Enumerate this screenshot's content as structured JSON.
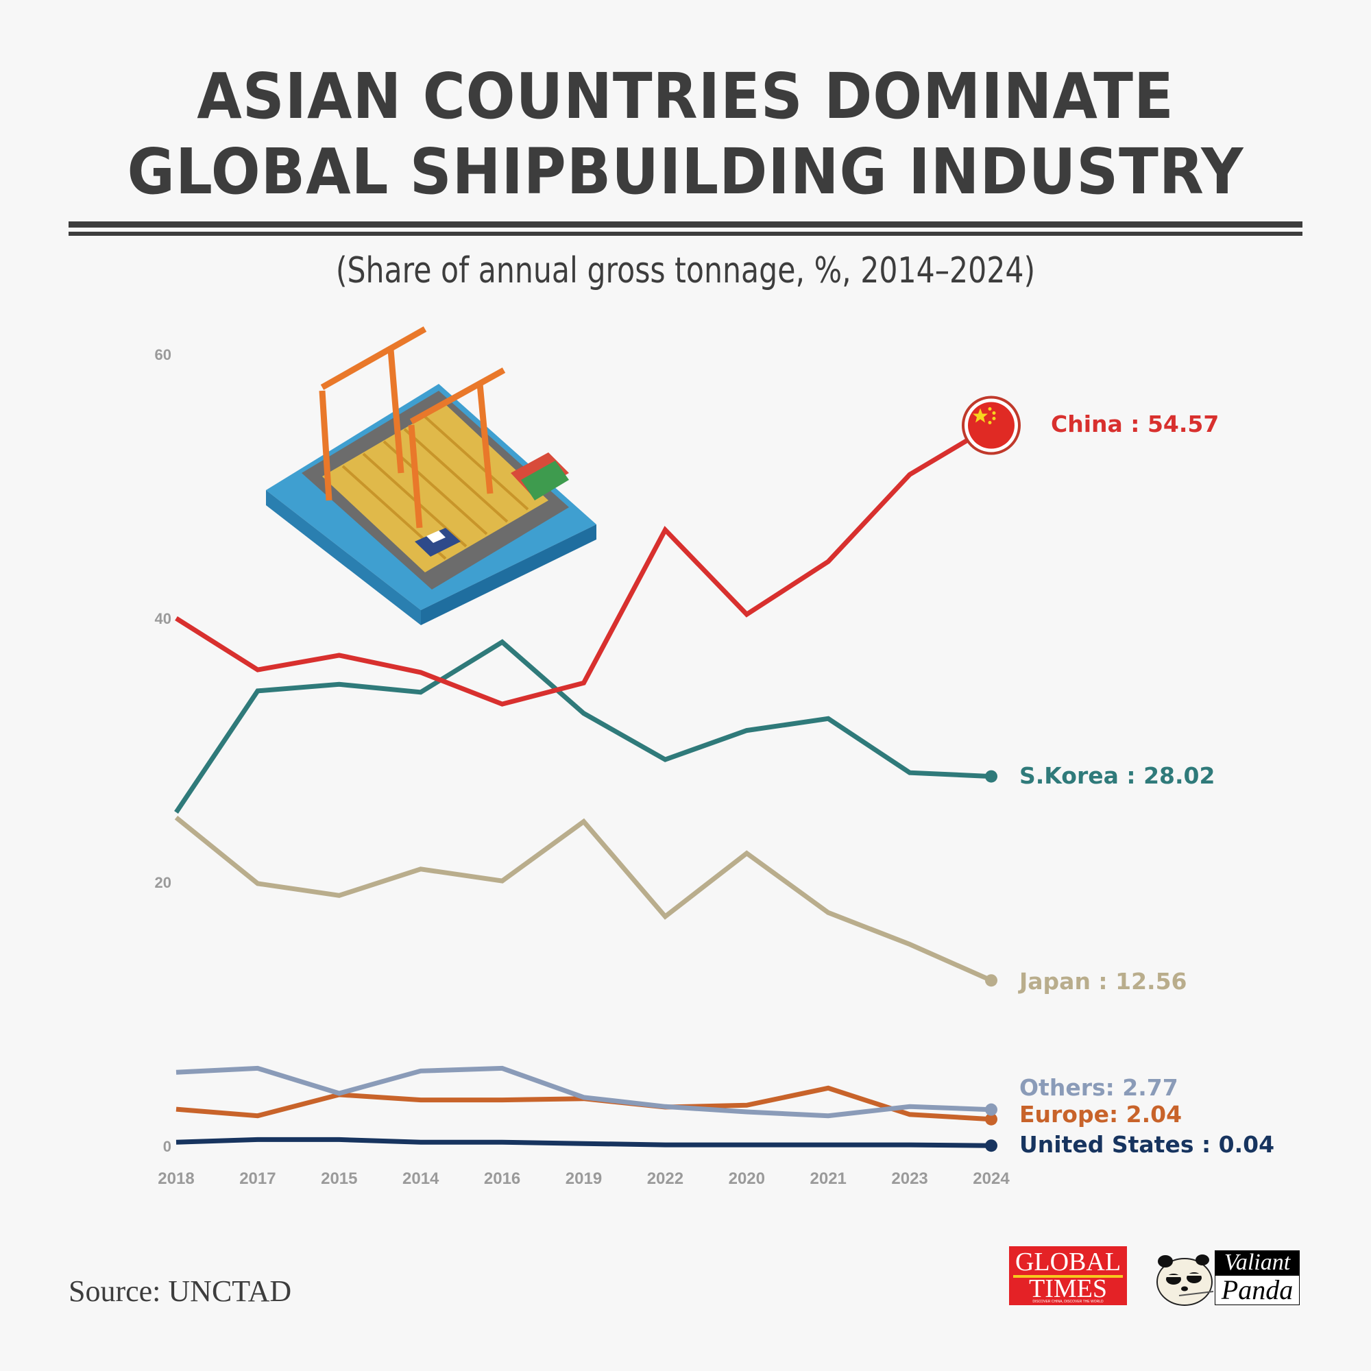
{
  "header": {
    "title_line1": "ASIAN COUNTRIES DOMINATE",
    "title_line2": "GLOBAL SHIPBUILDING INDUSTRY",
    "subtitle": "(Share of annual gross tonnage, %, 2014–2024)"
  },
  "footer": {
    "source": "Source: UNCTAD",
    "logo_global_times": "GLOBAL TIMES",
    "logo_global_times_tagline": "DISCOVER CHINA, DISCOVER THE WORLD",
    "logo_valiant_panda_line1": "Valiant",
    "logo_valiant_panda_line2": "Panda"
  },
  "colors": {
    "background": "#f7f7f7",
    "china": "#d8302e",
    "skorea": "#2f7a7a",
    "japan": "#b9ad8c",
    "others": "#8a9bb8",
    "europe": "#c8632a",
    "us": "#17345f",
    "text": "#3d3d3d",
    "axis": "#9a9a9a"
  },
  "chart_data": {
    "type": "line",
    "title": "ASIAN COUNTRIES DOMINATE GLOBAL SHIPBUILDING INDUSTRY",
    "subtitle": "(Share of annual gross tonnage, %, 2014–2024)",
    "xlabel": "",
    "ylabel": "",
    "ylim": [
      0,
      60
    ],
    "yticks": [
      "0",
      "20",
      "40",
      "60"
    ],
    "ytick_values": [
      0,
      20,
      40,
      60
    ],
    "grid": false,
    "legend": "inline-right",
    "categories": [
      "2018",
      "2017",
      "2015",
      "2014",
      "2016",
      "2019",
      "2022",
      "2020",
      "2021",
      "2023",
      "2024"
    ],
    "series": [
      {
        "name": "China",
        "label": "China : 54.57",
        "color": "#d8302e",
        "marker": "china-flag",
        "values": [
          40.0,
          36.1,
          37.2,
          35.9,
          33.5,
          35.1,
          46.7,
          40.3,
          44.3,
          50.9,
          54.57
        ]
      },
      {
        "name": "S.Korea",
        "label": "S.Korea : 28.02",
        "color": "#2f7a7a",
        "marker": "dot",
        "values": [
          25.3,
          34.5,
          35.0,
          34.4,
          38.2,
          32.8,
          29.3,
          31.5,
          32.4,
          28.3,
          28.02
        ]
      },
      {
        "name": "Japan",
        "label": "Japan : 12.56",
        "color": "#b9ad8c",
        "marker": "dot",
        "values": [
          24.9,
          19.9,
          19.0,
          21.0,
          20.1,
          24.6,
          17.4,
          22.2,
          17.7,
          15.3,
          12.56
        ]
      },
      {
        "name": "Others",
        "label": "Others: 2.77",
        "color": "#8a9bb8",
        "marker": "dot",
        "values": [
          5.6,
          5.9,
          4.0,
          5.7,
          5.9,
          3.7,
          3.0,
          2.6,
          2.3,
          3.0,
          2.77
        ]
      },
      {
        "name": "Europe",
        "label": "Europe: 2.04",
        "color": "#c8632a",
        "marker": "dot",
        "values": [
          2.8,
          2.3,
          3.9,
          3.5,
          3.5,
          3.6,
          2.96,
          3.1,
          4.4,
          2.4,
          2.04
        ]
      },
      {
        "name": "United States",
        "label": "United States : 0.04",
        "color": "#17345f",
        "marker": "dot",
        "values": [
          0.3,
          0.5,
          0.5,
          0.3,
          0.3,
          0.2,
          0.1,
          0.1,
          0.1,
          0.1,
          0.04
        ]
      }
    ]
  }
}
